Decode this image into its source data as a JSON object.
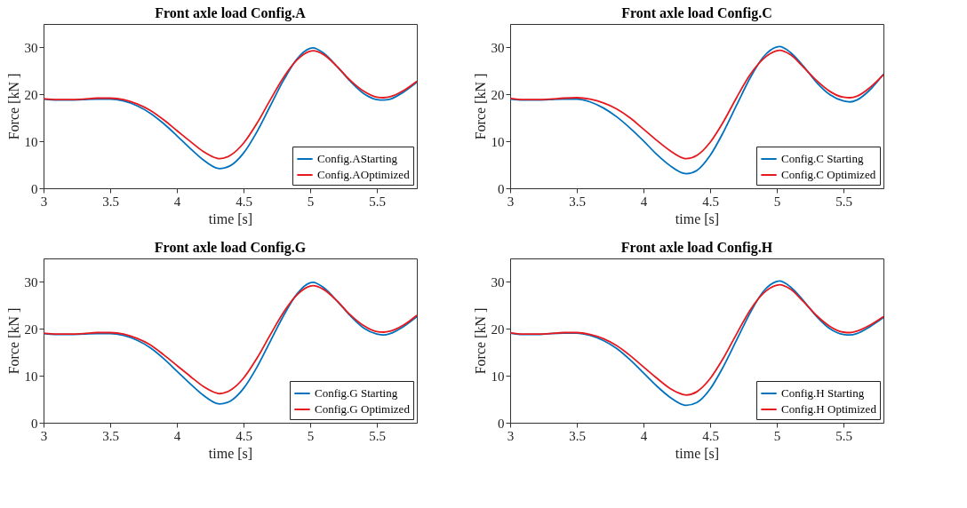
{
  "chart_data": [
    {
      "type": "line",
      "title": "Front axle load Config.A",
      "xlabel": "time [s]",
      "ylabel": "Force [kN ]",
      "xlim": [
        3,
        5.8
      ],
      "ylim": [
        0,
        35
      ],
      "xticks": [
        3,
        3.5,
        4,
        4.5,
        5,
        5.5
      ],
      "yticks": [
        0,
        10,
        20,
        30
      ],
      "grid": false,
      "legend": "bottom right",
      "marker": "none",
      "line_style": "solid",
      "x": [
        3.0,
        3.1,
        3.2,
        3.3,
        3.4,
        3.5,
        3.6,
        3.7,
        3.8,
        3.9,
        4.0,
        4.1,
        4.2,
        4.3,
        4.32,
        4.4,
        4.5,
        4.6,
        4.7,
        4.8,
        4.9,
        5.0,
        5.02,
        5.1,
        5.2,
        5.3,
        5.4,
        5.5,
        5.55,
        5.6,
        5.7,
        5.8
      ],
      "series": [
        {
          "name": "Config.AStarting",
          "color": "#0072bd",
          "values": [
            19.0,
            18.8,
            18.8,
            18.9,
            19.0,
            19.0,
            18.6,
            17.6,
            16.0,
            13.8,
            11.2,
            8.5,
            6.0,
            4.3,
            4.2,
            4.8,
            7.5,
            12.0,
            17.5,
            23.0,
            27.5,
            29.8,
            29.9,
            28.8,
            26.0,
            22.8,
            20.2,
            18.9,
            18.8,
            19.0,
            20.5,
            22.6
          ]
        },
        {
          "name": "Config.AOptimized",
          "color": "#e6191e",
          "values": [
            19.1,
            18.9,
            18.9,
            19.0,
            19.2,
            19.2,
            18.9,
            18.0,
            16.6,
            14.6,
            12.3,
            10.0,
            7.8,
            6.4,
            6.3,
            7.0,
            9.6,
            13.8,
            18.8,
            23.6,
            27.3,
            29.2,
            29.3,
            28.5,
            26.0,
            23.0,
            20.7,
            19.4,
            19.3,
            19.5,
            20.8,
            22.8
          ]
        }
      ]
    },
    {
      "type": "line",
      "title": "Front axle load Config.C",
      "xlabel": "time [s]",
      "ylabel": "Force [kN ]",
      "xlim": [
        3,
        5.8
      ],
      "ylim": [
        0,
        35
      ],
      "xticks": [
        3,
        3.5,
        4,
        4.5,
        5,
        5.5
      ],
      "yticks": [
        0,
        10,
        20,
        30
      ],
      "grid": false,
      "legend": "bottom right",
      "marker": "none",
      "line_style": "solid",
      "x": [
        3.0,
        3.1,
        3.2,
        3.3,
        3.4,
        3.5,
        3.6,
        3.7,
        3.8,
        3.9,
        4.0,
        4.1,
        4.2,
        4.3,
        4.32,
        4.4,
        4.5,
        4.6,
        4.7,
        4.8,
        4.9,
        5.0,
        5.02,
        5.1,
        5.2,
        5.3,
        5.4,
        5.5,
        5.55,
        5.6,
        5.7,
        5.8
      ],
      "series": [
        {
          "name": "Config.C Starting",
          "color": "#0072bd",
          "values": [
            19.0,
            18.8,
            18.8,
            18.9,
            19.0,
            19.0,
            18.4,
            17.1,
            15.2,
            12.8,
            10.1,
            7.2,
            4.8,
            3.2,
            3.1,
            3.8,
            7.0,
            12.0,
            17.8,
            23.5,
            28.0,
            30.1,
            30.2,
            29.0,
            26.0,
            22.5,
            19.9,
            18.6,
            18.4,
            18.8,
            21.0,
            24.3
          ]
        },
        {
          "name": "Config.C Optimized",
          "color": "#e6191e",
          "values": [
            19.2,
            18.9,
            18.9,
            19.0,
            19.2,
            19.3,
            19.0,
            18.2,
            16.9,
            15.0,
            12.6,
            10.2,
            8.0,
            6.4,
            6.3,
            7.0,
            9.8,
            14.2,
            19.4,
            24.2,
            27.6,
            29.3,
            29.4,
            28.5,
            25.8,
            22.9,
            20.6,
            19.4,
            19.3,
            19.6,
            21.5,
            24.2
          ]
        }
      ]
    },
    {
      "type": "line",
      "title": "Front axle load Config.G",
      "xlabel": "time [s]",
      "ylabel": "Force [kN ]",
      "xlim": [
        3,
        5.8
      ],
      "ylim": [
        0,
        35
      ],
      "xticks": [
        3,
        3.5,
        4,
        4.5,
        5,
        5.5
      ],
      "yticks": [
        0,
        10,
        20,
        30
      ],
      "grid": false,
      "legend": "bottom right",
      "marker": "none",
      "line_style": "solid",
      "x": [
        3.0,
        3.1,
        3.2,
        3.3,
        3.4,
        3.5,
        3.6,
        3.7,
        3.8,
        3.9,
        4.0,
        4.1,
        4.2,
        4.3,
        4.32,
        4.4,
        4.5,
        4.6,
        4.7,
        4.8,
        4.9,
        5.0,
        5.02,
        5.1,
        5.2,
        5.3,
        5.4,
        5.5,
        5.55,
        5.6,
        5.7,
        5.8
      ],
      "series": [
        {
          "name": "Config.G Starting",
          "color": "#0072bd",
          "values": [
            19.0,
            18.8,
            18.8,
            18.9,
            19.0,
            19.0,
            18.6,
            17.6,
            16.0,
            13.7,
            11.0,
            8.3,
            5.8,
            4.1,
            4.0,
            4.6,
            7.3,
            11.8,
            17.3,
            22.8,
            27.4,
            29.8,
            29.9,
            28.8,
            26.0,
            22.8,
            20.2,
            18.9,
            18.7,
            19.0,
            20.5,
            22.6
          ]
        },
        {
          "name": "Config.G Optimized",
          "color": "#e6191e",
          "values": [
            19.1,
            18.9,
            18.9,
            19.0,
            19.2,
            19.2,
            18.9,
            18.0,
            16.6,
            14.5,
            12.2,
            9.9,
            7.7,
            6.3,
            6.2,
            6.9,
            9.5,
            13.7,
            18.7,
            23.5,
            27.2,
            29.1,
            29.2,
            28.4,
            26.0,
            23.0,
            20.7,
            19.4,
            19.3,
            19.5,
            20.8,
            22.9
          ]
        }
      ]
    },
    {
      "type": "line",
      "title": "Front axle load Config.H",
      "xlabel": "time [s]",
      "ylabel": "Force [kN ]",
      "xlim": [
        3,
        5.8
      ],
      "ylim": [
        0,
        35
      ],
      "xticks": [
        3,
        3.5,
        4,
        4.5,
        5,
        5.5
      ],
      "yticks": [
        0,
        10,
        20,
        30
      ],
      "grid": false,
      "legend": "bottom right",
      "marker": "none",
      "line_style": "solid",
      "x": [
        3.0,
        3.1,
        3.2,
        3.3,
        3.4,
        3.5,
        3.6,
        3.7,
        3.8,
        3.9,
        4.0,
        4.1,
        4.2,
        4.3,
        4.32,
        4.4,
        4.5,
        4.6,
        4.7,
        4.8,
        4.9,
        5.0,
        5.02,
        5.1,
        5.2,
        5.3,
        5.4,
        5.5,
        5.55,
        5.6,
        5.7,
        5.8
      ],
      "series": [
        {
          "name": "Config.H Starting",
          "color": "#0072bd",
          "values": [
            19.1,
            18.8,
            18.8,
            19.0,
            19.1,
            19.1,
            18.6,
            17.5,
            15.8,
            13.4,
            10.6,
            7.8,
            5.4,
            3.8,
            3.7,
            4.3,
            7.2,
            12.0,
            17.7,
            23.4,
            28.0,
            30.1,
            30.2,
            29.0,
            26.0,
            22.6,
            20.0,
            18.8,
            18.7,
            19.0,
            20.5,
            22.4
          ]
        },
        {
          "name": "Config.H Optimized",
          "color": "#e6191e",
          "values": [
            19.2,
            18.9,
            18.9,
            19.0,
            19.2,
            19.2,
            18.8,
            17.9,
            16.4,
            14.3,
            11.9,
            9.5,
            7.3,
            6.0,
            5.9,
            6.6,
            9.4,
            13.8,
            19.0,
            24.0,
            27.6,
            29.3,
            29.4,
            28.5,
            25.8,
            22.8,
            20.5,
            19.3,
            19.2,
            19.5,
            20.8,
            22.6
          ]
        }
      ]
    }
  ]
}
